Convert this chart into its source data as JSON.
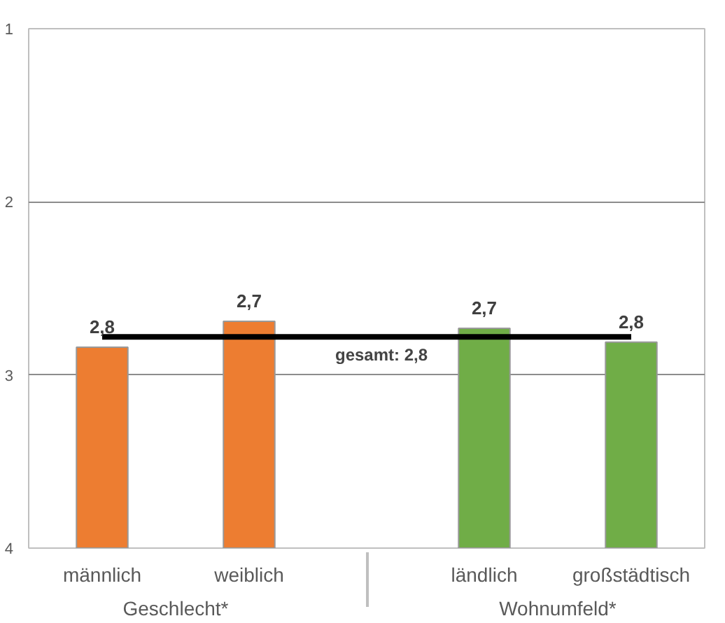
{
  "chart_data": {
    "type": "bar",
    "categories": [
      "männlich",
      "weiblich",
      "ländlich",
      "großstädtisch"
    ],
    "base": [
      4,
      4,
      4,
      4
    ],
    "values": [
      -1.16,
      -1.31,
      -1.27,
      -1.19
    ],
    "colors": [
      "#ed7d31",
      "#ed7d31",
      "#70ad47",
      "#70ad47"
    ],
    "value_labels": [
      "2,8",
      "2,7",
      "2,7",
      "2,8"
    ],
    "ylim": [
      4,
      1
    ],
    "yticks": [
      1,
      2,
      3,
      4
    ],
    "grid": "y",
    "ref_lines": [
      {
        "axis": "y",
        "value": 2.78,
        "label": "gesamt: 2,8",
        "color": "#000000"
      }
    ],
    "annotations": [
      "Geschlecht*",
      "Wohnumfeld*"
    ]
  }
}
